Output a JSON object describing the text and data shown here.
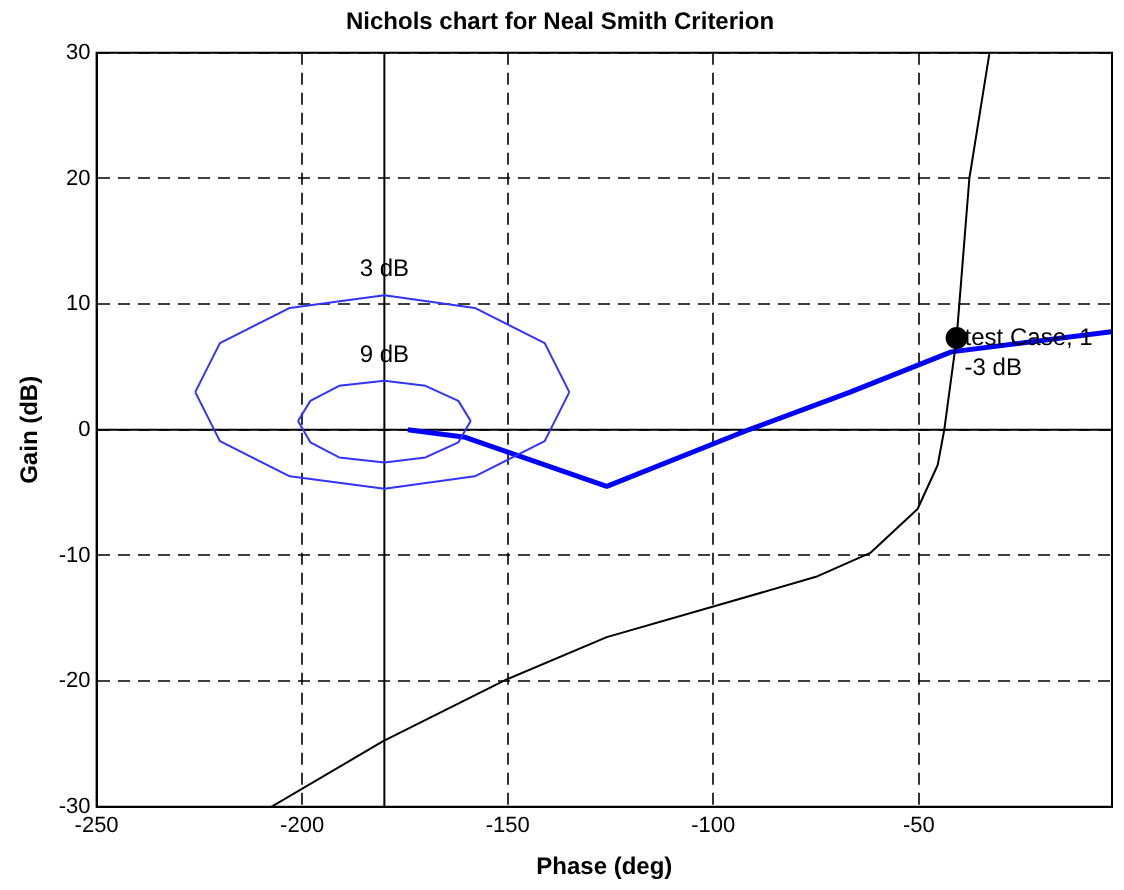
{
  "chart_data": {
    "type": "line",
    "title": "Nichols chart for Neal Smith Criterion",
    "xlabel": "Phase (deg)",
    "ylabel": "Gain (dB)",
    "xlim": [
      -250,
      -3
    ],
    "ylim": [
      -30,
      30
    ],
    "xticks": [
      -250,
      -200,
      -150,
      -100,
      -50
    ],
    "yticks": [
      -30,
      -20,
      -10,
      0,
      10,
      20,
      30
    ],
    "grid": true,
    "legend": false,
    "marker": "none",
    "line_style": "solid",
    "series": [
      {
        "color": "#3333ff",
        "x": [
          -226,
          -220,
          -203,
          -180,
          -158,
          -141,
          -135
        ],
        "values": [
          3,
          6.9,
          9.7,
          10.7,
          9.7,
          6.9,
          3
        ]
      },
      {
        "color": "#3333ff",
        "x": [
          -226,
          -220,
          -203,
          -180,
          -158,
          -141,
          -135
        ],
        "values": [
          3,
          -0.9,
          -3.7,
          -4.7,
          -3.7,
          -0.9,
          3
        ]
      },
      {
        "color": "#3333ff",
        "x": [
          -201,
          -198,
          -191,
          -180,
          -170,
          -162,
          -159
        ],
        "values": [
          0.7,
          2.3,
          3.5,
          3.9,
          3.5,
          2.3,
          0.7
        ]
      },
      {
        "color": "#3333ff",
        "x": [
          -201,
          -198,
          -191,
          -180,
          -170,
          -162,
          -159
        ],
        "values": [
          0.7,
          -1,
          -2.2,
          -2.6,
          -2.2,
          -1,
          0.7
        ]
      },
      {
        "color": "#000000",
        "x": [
          -207.5,
          -180.4,
          -150.5,
          -125.9,
          -100.4,
          -75,
          -61.8,
          -50.3,
          -45.4,
          -43.8,
          -40.8,
          -37.7,
          -32.8
        ],
        "values": [
          -30,
          -24.8,
          -19.9,
          -16.5,
          -14.1,
          -11.7,
          -9.8,
          -6.3,
          -2.8,
          0,
          7.3,
          20,
          30
        ]
      },
      {
        "color": "#0000ff",
        "x": [
          -174.3,
          -160.3,
          -125.9,
          -91.4,
          -66.7,
          -42.1,
          -3.2
        ],
        "values": [
          0,
          -0.6,
          -4.5,
          0,
          3,
          6.2,
          7.8
        ]
      },
      {
        "type": "scatter",
        "marker": "circle",
        "color": "#000000",
        "x": [
          -40.8
        ],
        "values": [
          7.3
        ]
      }
    ],
    "ref_lines": [
      {
        "axis": "x",
        "value": -180,
        "color": "#000000"
      },
      {
        "axis": "y",
        "value": 0,
        "color": "#000000"
      }
    ],
    "annotations": [
      {
        "text": "3 dB",
        "x": -180,
        "y": 11.8
      },
      {
        "text": "9 dB",
        "x": -180,
        "y": 5
      },
      {
        "text": "test Case, 1",
        "x": -40.8,
        "y": 7.3
      },
      {
        "text": "-3 dB",
        "x": -40.8,
        "y": 3.9
      }
    ]
  }
}
